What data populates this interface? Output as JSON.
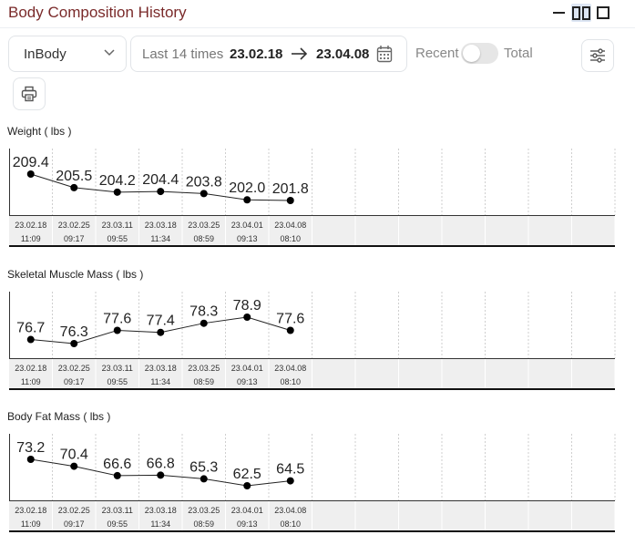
{
  "header": {
    "title": "Body Composition History"
  },
  "toolbar": {
    "source": "InBody",
    "range_label": "Last 14 times",
    "from": "23.02.18",
    "to": "23.04.08",
    "recent_label": "Recent",
    "total_label": "Total"
  },
  "x_labels": [
    [
      "23.02.18",
      "11:09"
    ],
    [
      "23.02.25",
      "09:17"
    ],
    [
      "23.03.11",
      "09:55"
    ],
    [
      "23.03.18",
      "11:34"
    ],
    [
      "23.03.25",
      "08:59"
    ],
    [
      "23.04.01",
      "09:13"
    ],
    [
      "23.04.08",
      "08:10"
    ]
  ],
  "chart_data": [
    {
      "type": "line",
      "title": "Weight ( lbs )",
      "values": [
        209.4,
        205.5,
        204.2,
        204.4,
        203.8,
        202.0,
        201.8
      ],
      "value_labels": [
        "209.4",
        "205.5",
        "204.2",
        "204.4",
        "203.8",
        "202.0",
        "201.8"
      ]
    },
    {
      "type": "line",
      "title": "Skeletal Muscle Mass ( lbs )",
      "values": [
        76.7,
        76.3,
        77.6,
        77.4,
        78.3,
        78.9,
        77.6
      ],
      "value_labels": [
        "76.7",
        "76.3",
        "77.6",
        "77.4",
        "78.3",
        "78.9",
        "77.6"
      ]
    },
    {
      "type": "line",
      "title": "Body Fat Mass ( lbs )",
      "values": [
        73.2,
        70.4,
        66.6,
        66.8,
        65.3,
        62.5,
        64.5
      ],
      "value_labels": [
        "73.2",
        "70.4",
        "66.6",
        "66.8",
        "65.3",
        "62.5",
        "64.5"
      ]
    }
  ]
}
